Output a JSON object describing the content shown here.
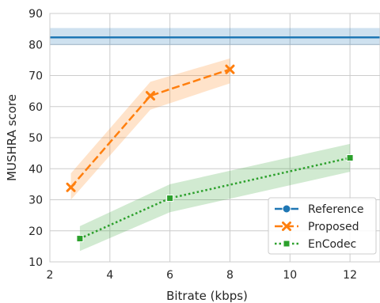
{
  "chart_data": {
    "type": "line",
    "xlabel": "Bitrate (kbps)",
    "ylabel": "MUSHRA score",
    "xlim": [
      2,
      13
    ],
    "ylim": [
      10,
      90
    ],
    "xticks": [
      "2",
      "4",
      "6",
      "8",
      "10",
      "12"
    ],
    "yticks": [
      "10",
      "20",
      "30",
      "40",
      "50",
      "60",
      "70",
      "80",
      "90"
    ],
    "grid": true,
    "legend_position": "bottom-right",
    "series": [
      {
        "name": "Reference",
        "color": "#1f77b4",
        "linestyle": "solid",
        "marker": "circle",
        "horizontal": true,
        "y": 82.3,
        "ci_low": 79.8,
        "ci_high": 85.3
      },
      {
        "name": "Proposed",
        "color": "#ff7f0e",
        "linestyle": "dashed",
        "marker": "x",
        "x": [
          2.7,
          5.35,
          8.0
        ],
        "y": [
          34.0,
          63.5,
          72.0
        ],
        "ci_low": [
          30.0,
          59.0,
          67.5
        ],
        "ci_high": [
          38.5,
          68.0,
          75.5
        ]
      },
      {
        "name": "EnCodec",
        "color": "#2ca02c",
        "linestyle": "dotted",
        "marker": "square",
        "x": [
          3.0,
          6.0,
          12.0
        ],
        "y": [
          17.5,
          30.5,
          43.5
        ],
        "ci_low": [
          13.5,
          26.0,
          39.0
        ],
        "ci_high": [
          21.5,
          35.0,
          48.0
        ]
      }
    ]
  }
}
